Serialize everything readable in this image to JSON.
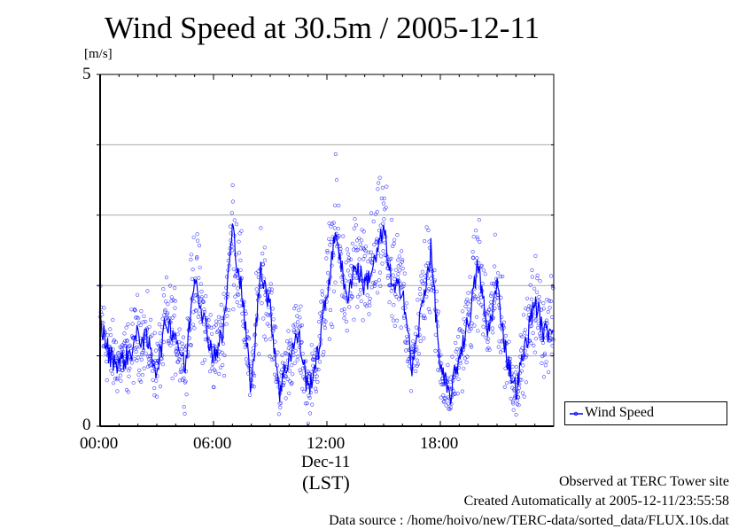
{
  "chart_data": {
    "type": "scatter",
    "title": "Wind Speed at 30.5m / 2005-12-11",
    "ylabel": "[m/s]",
    "xlabel": "(LST)",
    "xdate_label": "Dec-11",
    "ylim": [
      0,
      5
    ],
    "xlim_hours": [
      0,
      24
    ],
    "y_tick_labels": [
      "0",
      "5"
    ],
    "y_gridlines": [
      1,
      2,
      3,
      4
    ],
    "x_tick_labels": [
      "00:00",
      "06:00",
      "12:00",
      "18:00"
    ],
    "legend": {
      "label": "Wind Speed",
      "placement": "right-bottom-outside"
    },
    "color": "#0000ff",
    "series": [
      {
        "name": "Wind Speed",
        "x_hours": [
          0,
          0.5,
          1,
          1.5,
          2,
          2.5,
          3,
          3.5,
          4,
          4.5,
          5,
          5.5,
          6,
          6.5,
          7,
          7.5,
          8,
          8.5,
          9,
          9.5,
          10,
          10.5,
          11,
          11.5,
          12,
          12.5,
          13,
          13.5,
          14,
          14.5,
          15,
          15.5,
          16,
          16.5,
          17,
          17.5,
          18,
          18.5,
          19,
          19.5,
          20,
          20.5,
          21,
          21.5,
          22,
          22.5,
          23,
          23.5,
          24
        ],
        "values": [
          1.5,
          1.0,
          0.9,
          1.0,
          1.3,
          1.2,
          0.8,
          1.5,
          1.3,
          0.8,
          2.2,
          1.5,
          1.0,
          1.3,
          2.8,
          1.9,
          0.5,
          2.3,
          1.65,
          0.5,
          1.0,
          1.3,
          0.5,
          1.0,
          1.9,
          2.8,
          1.8,
          2.3,
          2.0,
          2.3,
          2.8,
          1.9,
          2.0,
          0.8,
          1.65,
          2.5,
          0.8,
          0.4,
          1.0,
          1.5,
          2.3,
          1.3,
          2.0,
          1.0,
          0.5,
          1.15,
          1.8,
          1.3,
          1.45
        ]
      }
    ]
  },
  "footer": {
    "observed": "Observed at TERC Tower site",
    "created": "Created Automatically at 2005-12-11/23:55:58",
    "source": "Data source : /home/hoivo/new/TERC-data/sorted_data/FLUX.10s.dat"
  }
}
